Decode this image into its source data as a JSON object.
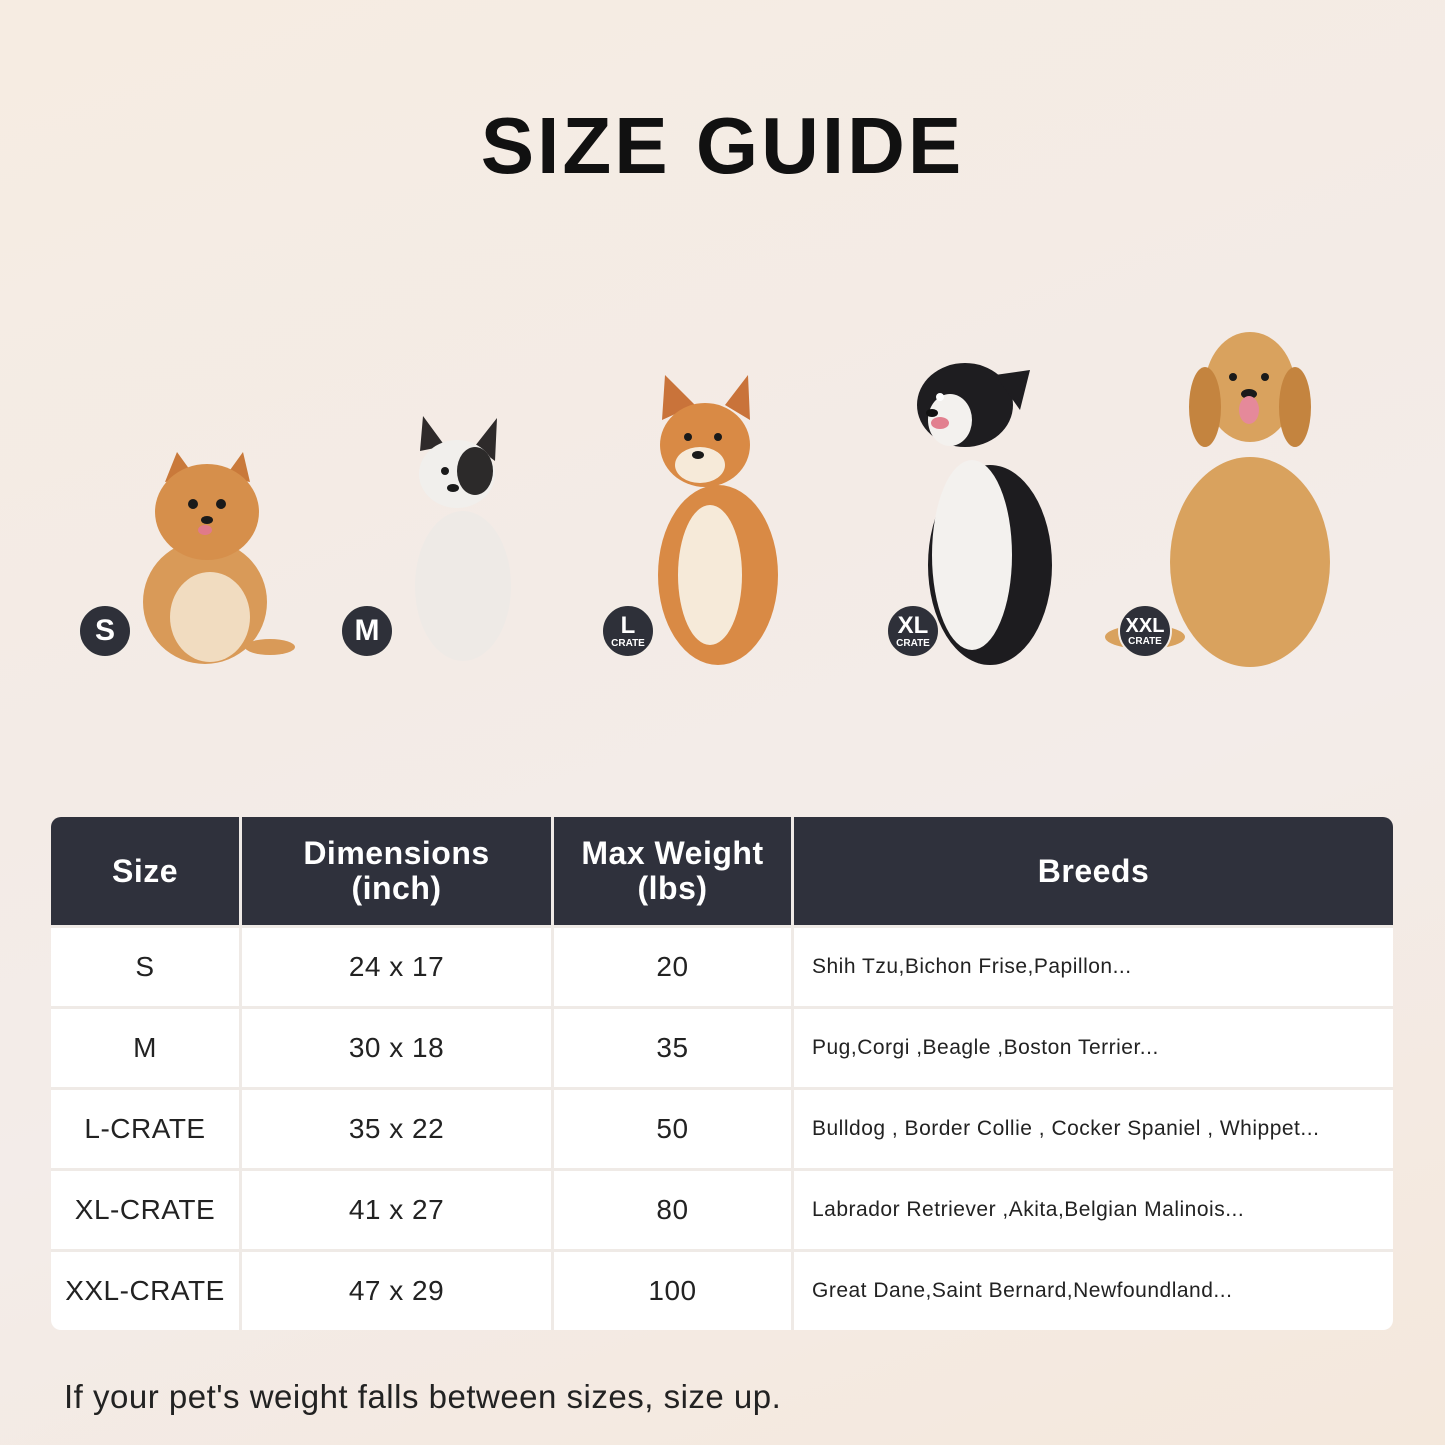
{
  "title": "SIZE GUIDE",
  "badges": [
    {
      "size": "S",
      "sub": ""
    },
    {
      "size": "M",
      "sub": ""
    },
    {
      "size": "L",
      "sub": "CRATE"
    },
    {
      "size": "XL",
      "sub": "CRATE"
    },
    {
      "size": "XXL",
      "sub": "CRATE"
    }
  ],
  "table": {
    "headers": {
      "size": "Size",
      "dimensions_1": "Dimensions",
      "dimensions_2": "(inch)",
      "weight_1": "Max Weight",
      "weight_2": "(lbs)",
      "breeds": "Breeds"
    },
    "rows": [
      {
        "size": "S",
        "dimensions": "24 x 17",
        "weight": "20",
        "breeds": "Shih Tzu,Bichon Frise,Papillon..."
      },
      {
        "size": "M",
        "dimensions": "30 x 18",
        "weight": "35",
        "breeds": "Pug,Corgi ,Beagle ,Boston Terrier..."
      },
      {
        "size": "L-CRATE",
        "dimensions": "35 x 22",
        "weight": "50",
        "breeds": "Bulldog , Border Collie , Cocker Spaniel , Whippet..."
      },
      {
        "size": "XL-CRATE",
        "dimensions": "41 x 27",
        "weight": "80",
        "breeds": "Labrador Retriever ,Akita,Belgian Malinois..."
      },
      {
        "size": "XXL-CRATE",
        "dimensions": "47 x 29",
        "weight": "100",
        "breeds": "Great Dane,Saint Bernard,Newfoundland..."
      }
    ]
  },
  "note": "If your pet's weight falls between sizes, size up.",
  "colors": {
    "header_bg": "#2f313c",
    "badge_bg": "#2e3039"
  }
}
